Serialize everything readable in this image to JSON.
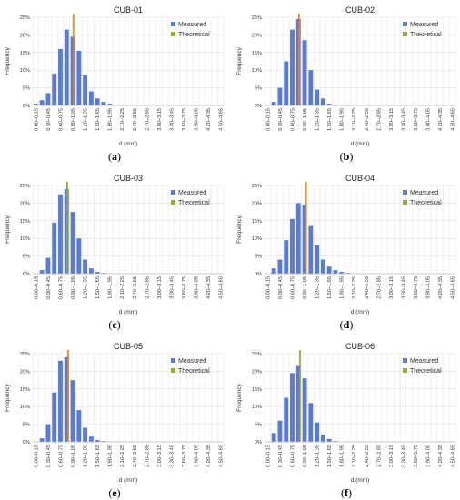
{
  "colors": {
    "measured": "#5a7bd0",
    "theoretical": "#9aaa2c",
    "theoretical_alt": "#e07a2a",
    "grid": "#d9d9d9",
    "axis": "#bfbfbf"
  },
  "common": {
    "categories": [
      "0.00–0.15",
      "0.15–0.30",
      "0.30–0.45",
      "0.45–0.60",
      "0.60–0.75",
      "0.75–0.90",
      "0.90–1.05",
      "1.05–1.20",
      "1.20–1.35",
      "1.35–1.50",
      "1.50–1.65",
      "1.65–1.80",
      "1.80–1.95",
      "1.95–2.10",
      "2.10–2.25",
      "2.25–2.40",
      "2.40–2.55",
      "2.55–2.70",
      "2.70–2.85",
      "2.85–3.00",
      "3.00–3.15",
      "3.15–3.30",
      "3.30–3.45",
      "3.45–3.60",
      "3.60–3.75",
      "3.75–3.90",
      "3.90–4.05",
      "4.05–4.20",
      "4.20–4.35",
      "4.35–4.50",
      "4.50–4.65"
    ],
    "tick_labels": [
      "0.00–0.15",
      "0.30–0.45",
      "0.60–0.75",
      "0.90–1.05",
      "1.20–1.35",
      "1.50–1.65",
      "1.80–1.95",
      "2.10–2.25",
      "2.40–2.55",
      "2.70–2.85",
      "3.00–3.15",
      "3.30–3.45",
      "3.60–3.75",
      "3.90–4.05",
      "4.20–4.35",
      "4.50–4.65"
    ],
    "y_ticks": [
      "0%",
      "5%",
      "10%",
      "15%",
      "20%",
      "25%"
    ],
    "ylabel": "Frequency",
    "xlabel": "d (mm)",
    "legend": [
      "Measured",
      "Theoretical"
    ]
  },
  "chart_data": [
    {
      "type": "bar",
      "title": "CUB-01",
      "panel": "(a)",
      "ylim": [
        0,
        25
      ],
      "values": [
        0.5,
        1.5,
        3.5,
        9.0,
        16.0,
        21.5,
        19.5,
        15.5,
        8.5,
        4.0,
        2.0,
        1.0,
        0.5,
        0,
        0,
        0,
        0,
        0,
        0,
        0,
        0,
        0,
        0,
        0,
        0,
        0,
        0,
        0,
        0,
        0,
        0
      ],
      "theoretical_d": 0.98
    },
    {
      "type": "bar",
      "title": "CUB-02",
      "panel": "(b)",
      "ylim": [
        0,
        25
      ],
      "values": [
        0,
        1.0,
        5.0,
        12.5,
        21.5,
        24.5,
        18.5,
        10.0,
        4.5,
        2.0,
        0.5,
        0.2,
        0,
        0,
        0,
        0,
        0,
        0,
        0,
        0,
        0,
        0,
        0,
        0,
        0,
        0,
        0,
        0,
        0,
        0,
        0
      ],
      "theoretical_d": 0.83
    },
    {
      "type": "bar",
      "title": "CUB-03",
      "panel": "(c)",
      "ylim": [
        0,
        25
      ],
      "values": [
        0,
        1.0,
        4.5,
        14.5,
        22.5,
        24.0,
        17.5,
        10.0,
        4.0,
        1.5,
        0.5,
        0.2,
        0,
        0,
        0,
        0,
        0,
        0,
        0,
        0,
        0,
        0,
        0,
        0,
        0,
        0,
        0,
        0,
        0,
        0,
        0
      ],
      "theoretical_d": 0.83
    },
    {
      "type": "bar",
      "title": "CUB-04",
      "panel": "(d)",
      "ylim": [
        0,
        25
      ],
      "values": [
        0,
        1.5,
        4.0,
        9.5,
        15.5,
        20.0,
        19.5,
        13.5,
        8.0,
        4.0,
        2.0,
        1.0,
        0.5,
        0.2,
        0,
        0,
        0,
        0,
        0,
        0,
        0,
        0,
        0,
        0,
        0,
        0,
        0,
        0,
        0,
        0,
        0
      ],
      "theoretical_d": 1.0
    },
    {
      "type": "bar",
      "title": "CUB-05",
      "panel": "(e)",
      "ylim": [
        0,
        25
      ],
      "values": [
        0,
        1.0,
        5.0,
        14.0,
        23.0,
        24.0,
        17.5,
        9.0,
        4.0,
        1.5,
        0.5,
        0.2,
        0,
        0,
        0,
        0,
        0,
        0,
        0,
        0,
        0,
        0,
        0,
        0,
        0,
        0,
        0,
        0,
        0,
        0,
        0
      ],
      "theoretical_d": 0.85
    },
    {
      "type": "bar",
      "title": "CUB-06",
      "panel": "(f)",
      "ylim": [
        0,
        25
      ],
      "values": [
        0,
        2.5,
        6.0,
        12.5,
        19.5,
        21.5,
        18.0,
        11.0,
        5.5,
        2.0,
        0.8,
        0.2,
        0,
        0,
        0,
        0,
        0,
        0,
        0,
        0,
        0,
        0,
        0,
        0,
        0,
        0,
        0,
        0,
        0,
        0,
        0
      ],
      "theoretical_d": 0.85
    }
  ]
}
